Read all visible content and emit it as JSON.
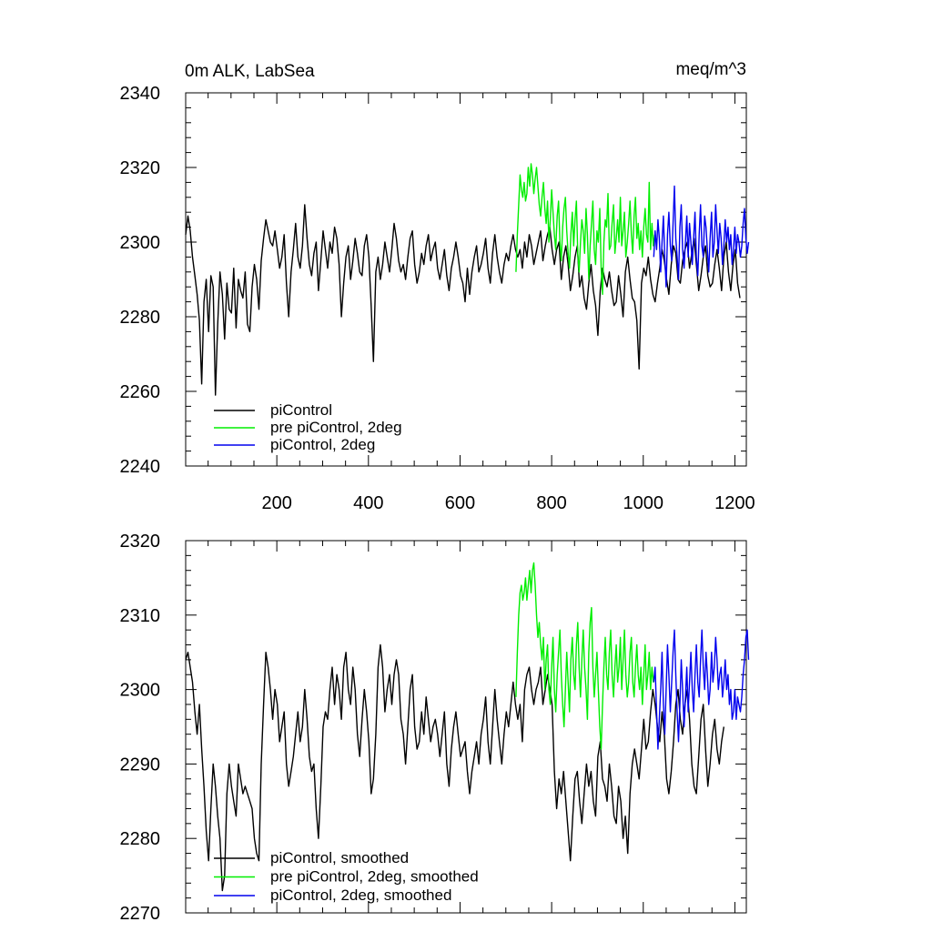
{
  "chart_data": [
    {
      "type": "line",
      "title_left": "0m ALK, LabSea",
      "title_right": "meq/m^3",
      "xlabel": "",
      "ylabel": "",
      "xlim": [
        1,
        1225
      ],
      "ylim": [
        2240,
        2340
      ],
      "xticks": [
        200,
        400,
        600,
        800,
        1000,
        1200
      ],
      "xtick_labels": [
        "200",
        "400",
        "600",
        "800",
        "1000",
        "1200"
      ],
      "yticks": [
        2240,
        2260,
        2280,
        2300,
        2320,
        2340
      ],
      "ytick_labels": [
        "2240",
        "2260",
        "2280",
        "2300",
        "2320",
        "2340"
      ],
      "legend_position": "bottom-left",
      "series": [
        {
          "name": "piControl",
          "color": "#000000",
          "x_start": 1,
          "x_step": 5,
          "values": [
            2302,
            2307,
            2303,
            2296,
            2291,
            2286,
            2279,
            2262,
            2284,
            2290,
            2276,
            2291,
            2288,
            2259,
            2278,
            2292,
            2286,
            2274,
            2289,
            2282,
            2281,
            2293,
            2277,
            2290,
            2287,
            2285,
            2292,
            2278,
            2276,
            2288,
            2294,
            2290,
            2282,
            2295,
            2301,
            2306,
            2303,
            2300,
            2299,
            2303,
            2298,
            2293,
            2296,
            2302,
            2289,
            2280,
            2292,
            2298,
            2305,
            2296,
            2293,
            2299,
            2310,
            2301,
            2294,
            2291,
            2297,
            2300,
            2287,
            2295,
            2303,
            2298,
            2293,
            2300,
            2297,
            2304,
            2301,
            2294,
            2280,
            2289,
            2296,
            2299,
            2290,
            2295,
            2301,
            2297,
            2292,
            2291,
            2299,
            2302,
            2296,
            2283,
            2268,
            2292,
            2296,
            2290,
            2294,
            2300,
            2296,
            2292,
            2298,
            2305,
            2301,
            2295,
            2292,
            2294,
            2290,
            2296,
            2301,
            2303,
            2294,
            2289,
            2292,
            2297,
            2294,
            2299,
            2302,
            2295,
            2298,
            2300,
            2293,
            2290,
            2294,
            2298,
            2291,
            2287,
            2293,
            2296,
            2300,
            2296,
            2291,
            2289,
            2284,
            2293,
            2286,
            2292,
            2296,
            2299,
            2292,
            2294,
            2297,
            2301,
            2293,
            2289,
            2297,
            2302,
            2296,
            2292,
            2289,
            2294,
            2297,
            2295,
            2299,
            2302,
            2298,
            2296,
            2298,
            2293,
            2300,
            2296,
            2302,
            2299,
            2294,
            2297,
            2300,
            2303,
            2295,
            2299,
            2302,
            2304,
            2298,
            2294,
            2298,
            2300,
            2290,
            2296,
            2299,
            2294,
            2287,
            2291,
            2296,
            2299,
            2288,
            2291,
            2285,
            2282,
            2289,
            2294,
            2287,
            2283,
            2275,
            2287,
            2293,
            2290,
            2288,
            2292,
            2287,
            2283,
            2284,
            2291,
            2286,
            2280,
            2292,
            2296,
            2290,
            2285,
            2284,
            2279,
            2266,
            2289,
            2293,
            2291,
            2296,
            2290,
            2286,
            2284,
            2289,
            2293,
            2298,
            2295,
            2290,
            2286,
            2294,
            2299,
            2297,
            2290,
            2289,
            2295,
            2298,
            2300,
            2293,
            2297,
            2301,
            2294,
            2287,
            2291,
            2296,
            2299,
            2291,
            2288,
            2289,
            2294,
            2298,
            2293,
            2287,
            2296,
            2300,
            2292,
            2287,
            2294,
            2298,
            2289,
            2285
          ]
        },
        {
          "name": "pre piControl, 2deg",
          "color": "#00ee00",
          "x_start": 722,
          "x_step": 3,
          "values": [
            2292,
            2302,
            2310,
            2318,
            2314,
            2312,
            2316,
            2311,
            2313,
            2320,
            2315,
            2321,
            2318,
            2313,
            2317,
            2320,
            2315,
            2310,
            2307,
            2312,
            2316,
            2309,
            2305,
            2311,
            2300,
            2306,
            2314,
            2308,
            2302,
            2298,
            2307,
            2311,
            2300,
            2295,
            2304,
            2309,
            2312,
            2303,
            2297,
            2293,
            2302,
            2308,
            2299,
            2306,
            2311,
            2297,
            2292,
            2300,
            2306,
            2303,
            2297,
            2309,
            2302,
            2290,
            2299,
            2305,
            2311,
            2298,
            2294,
            2303,
            2300,
            2309,
            2293,
            2286,
            2300,
            2306,
            2304,
            2313,
            2298,
            2299,
            2305,
            2310,
            2297,
            2301,
            2306,
            2300,
            2312,
            2299,
            2303,
            2308,
            2296,
            2300,
            2305,
            2311,
            2302,
            2297,
            2307,
            2312,
            2301,
            2305,
            2298,
            2303,
            2296,
            2304,
            2309,
            2302,
            2300,
            2316,
            2298,
            2305,
            2299,
            2302
          ]
        },
        {
          "name": "piControl, 2deg",
          "color": "#0000ee",
          "x_start": 1023,
          "x_step": 3,
          "values": [
            2296,
            2303,
            2298,
            2306,
            2301,
            2292,
            2300,
            2307,
            2296,
            2288,
            2302,
            2308,
            2299,
            2295,
            2305,
            2315,
            2301,
            2296,
            2290,
            2304,
            2310,
            2298,
            2293,
            2300,
            2307,
            2296,
            2305,
            2300,
            2294,
            2301,
            2308,
            2296,
            2291,
            2302,
            2310,
            2299,
            2296,
            2307,
            2304,
            2298,
            2292,
            2301,
            2308,
            2296,
            2300,
            2310,
            2303,
            2297,
            2305,
            2301,
            2294,
            2299,
            2306,
            2300,
            2304,
            2298,
            2302,
            2294,
            2298,
            2304,
            2297,
            2302,
            2300,
            2296,
            2299,
            2305,
            2309,
            2301,
            2297,
            2300
          ]
        }
      ]
    },
    {
      "type": "line",
      "title_left": "",
      "title_right": "",
      "xlabel": "",
      "ylabel": "",
      "xlim": [
        1,
        1225
      ],
      "ylim": [
        2270,
        2320
      ],
      "xticks": [
        200,
        400,
        600,
        800,
        1000,
        1200
      ],
      "yticks": [
        2270,
        2280,
        2290,
        2300,
        2310,
        2320
      ],
      "ytick_labels": [
        "2270",
        "2280",
        "2290",
        "2300",
        "2310",
        "2320"
      ],
      "legend_position": "bottom-left",
      "series": [
        {
          "name": "piControl, smoothed",
          "color": "#000000",
          "x_start": 1,
          "x_step": 5,
          "values": [
            2304,
            2305,
            2303,
            2301,
            2297,
            2294,
            2298,
            2292,
            2287,
            2281,
            2277,
            2284,
            2290,
            2287,
            2283,
            2280,
            2273,
            2275,
            2286,
            2290,
            2287,
            2285,
            2283,
            2290,
            2288,
            2286,
            2287,
            2286,
            2285,
            2284,
            2280,
            2278,
            2277,
            2290,
            2298,
            2305,
            2303,
            2300,
            2296,
            2300,
            2298,
            2293,
            2295,
            2297,
            2290,
            2287,
            2289,
            2291,
            2294,
            2297,
            2293,
            2295,
            2300,
            2296,
            2291,
            2289,
            2290,
            2284,
            2280,
            2287,
            2295,
            2297,
            2296,
            2300,
            2303,
            2298,
            2302,
            2300,
            2296,
            2303,
            2305,
            2300,
            2298,
            2303,
            2300,
            2294,
            2291,
            2296,
            2300,
            2297,
            2293,
            2286,
            2288,
            2294,
            2303,
            2306,
            2303,
            2297,
            2300,
            2302,
            2298,
            2302,
            2304,
            2302,
            2296,
            2294,
            2290,
            2295,
            2300,
            2302,
            2295,
            2292,
            2293,
            2297,
            2294,
            2299,
            2296,
            2293,
            2295,
            2296,
            2294,
            2291,
            2294,
            2297,
            2290,
            2287,
            2292,
            2295,
            2297,
            2294,
            2291,
            2292,
            2293,
            2289,
            2286,
            2289,
            2291,
            2293,
            2290,
            2294,
            2296,
            2299,
            2293,
            2290,
            2295,
            2300,
            2296,
            2293,
            2290,
            2294,
            2297,
            2295,
            2298,
            2301,
            2298,
            2296,
            2298,
            2293,
            2300,
            2302,
            2303,
            2300,
            2298,
            2300,
            2301,
            2303,
            2298,
            2300,
            2302,
            2300,
            2298,
            2289,
            2284,
            2288,
            2286,
            2289,
            2285,
            2281,
            2277,
            2283,
            2288,
            2289,
            2285,
            2282,
            2286,
            2290,
            2287,
            2289,
            2285,
            2283,
            2291,
            2293,
            2288,
            2287,
            2285,
            2290,
            2287,
            2283,
            2282,
            2287,
            2285,
            2280,
            2283,
            2278,
            2286,
            2290,
            2292,
            2290,
            2288,
            2292,
            2296,
            2292,
            2293,
            2297,
            2300,
            2298,
            2295,
            2293,
            2297,
            2294,
            2288,
            2286,
            2289,
            2293,
            2298,
            2300,
            2296,
            2294,
            2298,
            2300,
            2296,
            2290,
            2287,
            2286,
            2291,
            2296,
            2298,
            2292,
            2287,
            2290,
            2294,
            2296,
            2292,
            2290,
            2293,
            2295
          ]
        },
        {
          "name": "pre piControl, 2deg, smoothed",
          "color": "#00ee00",
          "x_start": 722,
          "x_step": 3,
          "values": [
            2299,
            2305,
            2310,
            2313,
            2314,
            2312,
            2313,
            2315,
            2312,
            2314,
            2316,
            2313,
            2316,
            2317,
            2314,
            2310,
            2307,
            2309,
            2306,
            2304,
            2307,
            2300,
            2304,
            2306,
            2300,
            2298,
            2303,
            2307,
            2300,
            2297,
            2302,
            2305,
            2308,
            2302,
            2298,
            2295,
            2300,
            2305,
            2301,
            2297,
            2304,
            2307,
            2302,
            2300,
            2306,
            2309,
            2303,
            2299,
            2304,
            2308,
            2303,
            2300,
            2296,
            2305,
            2309,
            2311,
            2303,
            2299,
            2302,
            2305,
            2300,
            2295,
            2292,
            2298,
            2303,
            2307,
            2302,
            2300,
            2305,
            2308,
            2302,
            2299,
            2303,
            2306,
            2301,
            2303,
            2307,
            2300,
            2304,
            2308,
            2302,
            2299,
            2301,
            2305,
            2307,
            2301,
            2299,
            2303,
            2306,
            2302,
            2300,
            2303,
            2298,
            2302,
            2306,
            2300,
            2302,
            2305,
            2300,
            2303,
            2301,
            2302
          ]
        },
        {
          "name": "piControl, 2deg, smoothed",
          "color": "#0000ee",
          "x_start": 1023,
          "x_step": 3,
          "values": [
            2301,
            2303,
            2297,
            2292,
            2296,
            2300,
            2305,
            2298,
            2294,
            2300,
            2306,
            2302,
            2297,
            2301,
            2305,
            2308,
            2302,
            2297,
            2293,
            2298,
            2304,
            2300,
            2295,
            2299,
            2303,
            2297,
            2301,
            2305,
            2300,
            2297,
            2302,
            2306,
            2301,
            2299,
            2304,
            2308,
            2303,
            2300,
            2305,
            2302,
            2298,
            2300,
            2305,
            2301,
            2303,
            2307,
            2304,
            2300,
            2302,
            2303,
            2299,
            2301,
            2304,
            2300,
            2302,
            2298,
            2300,
            2296,
            2297,
            2300,
            2296,
            2299,
            2298,
            2297,
            2299,
            2302,
            2304,
            2307,
            2308,
            2304
          ]
        }
      ]
    }
  ]
}
